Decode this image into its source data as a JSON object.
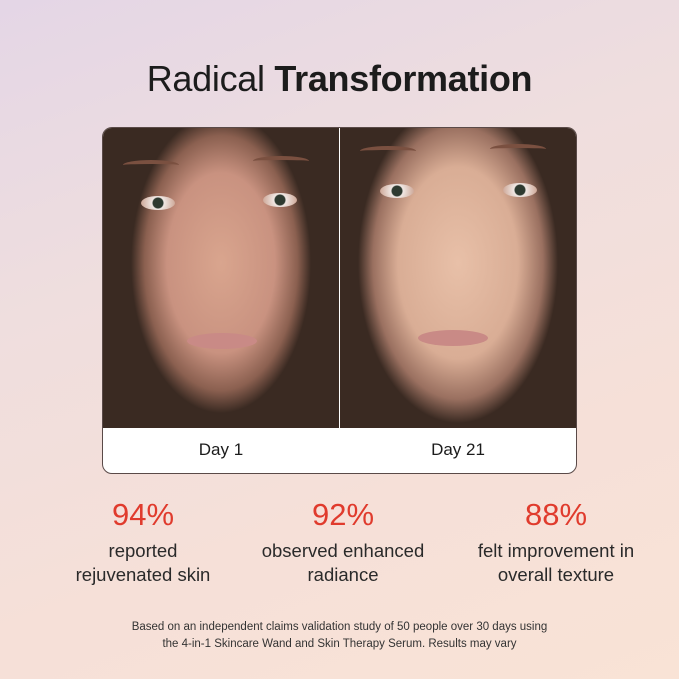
{
  "title": {
    "regular": "Radical",
    "bold": "Transformation"
  },
  "comparison": {
    "before_label": "Day 1",
    "after_label": "Day 21"
  },
  "stats": [
    {
      "percent": "94%",
      "line1": "reported",
      "line2": "rejuvenated skin"
    },
    {
      "percent": "92%",
      "line1": "observed enhanced",
      "line2": "radiance"
    },
    {
      "percent": "88%",
      "line1": "felt improvement in",
      "line2": "overall texture"
    }
  ],
  "footnote": {
    "line1": "Based on an independent claims validation study of 50 people over 30 days using",
    "line2": "the 4-in-1 Skincare Wand and Skin Therapy Serum. Results may vary"
  },
  "colors": {
    "accent": "#e03b2d"
  }
}
